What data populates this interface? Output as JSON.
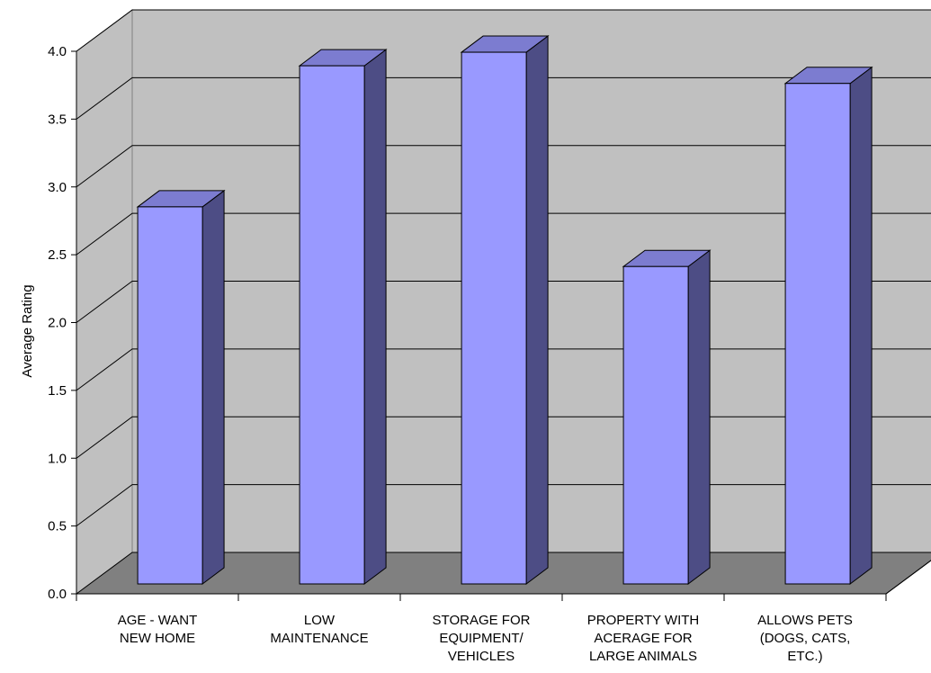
{
  "chart_data": {
    "type": "bar",
    "style": "3d-column",
    "title": "",
    "xlabel": "",
    "ylabel": "Average Rating",
    "ylim": [
      0,
      4.0
    ],
    "y_ticks": [
      "0.0",
      "0.5",
      "1.0",
      "1.5",
      "2.0",
      "2.5",
      "3.0",
      "3.5",
      "4.0"
    ],
    "categories": [
      [
        "AGE - WANT",
        "NEW HOME"
      ],
      [
        "LOW",
        "MAINTENANCE"
      ],
      [
        "STORAGE FOR",
        "EQUIPMENT/",
        "VEHICLES"
      ],
      [
        "PROPERTY WITH",
        "ACERAGE FOR",
        "LARGE ANIMALS"
      ],
      [
        "ALLOWS PETS",
        "(DOGS, CATS,",
        "ETC.)"
      ]
    ],
    "values": [
      2.78,
      3.82,
      3.92,
      2.34,
      3.69
    ],
    "grid": true,
    "legend": "none"
  },
  "colors": {
    "bar_front": "#9999ff",
    "bar_side": "#4d4d85",
    "bar_top": "#7c7cd0",
    "back_wall": "#c0c0c0",
    "side_wall": "#c0c0c0",
    "floor": "#808080",
    "grid": "#000000"
  }
}
